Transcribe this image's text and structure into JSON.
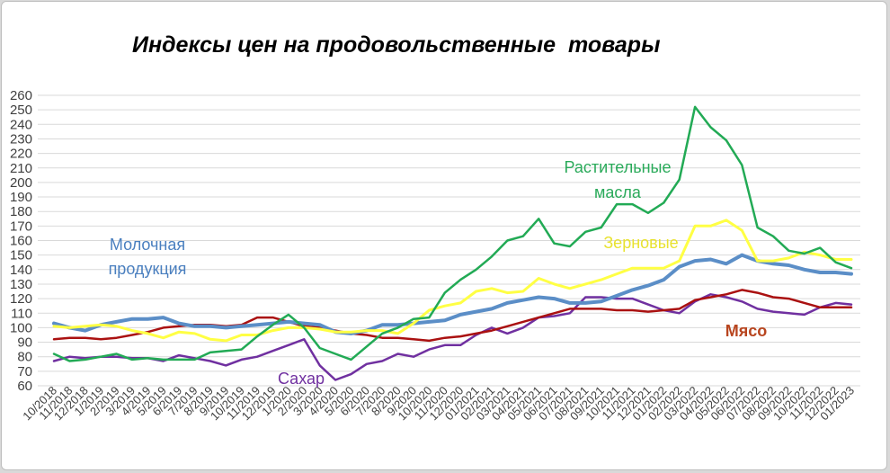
{
  "chart_data": {
    "type": "line",
    "title": "Индексы цен на продовольственные  товары",
    "xlabel": "",
    "ylabel": "",
    "ylim": [
      60,
      260
    ],
    "yticks": [
      60,
      70,
      80,
      90,
      100,
      110,
      120,
      130,
      140,
      150,
      160,
      170,
      180,
      190,
      200,
      210,
      220,
      230,
      240,
      250,
      260
    ],
    "grid": true,
    "legend": "none (inline labels)",
    "x": [
      "10/2018",
      "11/2018",
      "12/2018",
      "1/2019",
      "2/2019",
      "3/2019",
      "4/2019",
      "5/2019",
      "6/2019",
      "7/2019",
      "8/2019",
      "9/2019",
      "10/2019",
      "11/2019",
      "12/2019",
      "1/2020",
      "2/2020",
      "3/2020",
      "4/2020",
      "5/2020",
      "6/2020",
      "7/2020",
      "8/2020",
      "9/2020",
      "10/2020",
      "11/2020",
      "12/2020",
      "01/2021",
      "02/2021",
      "03/2021",
      "04/2021",
      "05/2021",
      "06/2021",
      "07/2021",
      "08/2021",
      "09/2021",
      "10/2021",
      "11/2021",
      "12/2021",
      "01/2022",
      "02/2022",
      "03/2022",
      "04/2022",
      "05/2022",
      "06/2022",
      "07/2022",
      "08/2022",
      "09/2022",
      "10/2022",
      "11/2022",
      "12/2022",
      "01/2023"
    ],
    "series": [
      {
        "name": "Молочная продукция",
        "color": "#5b8ec7",
        "values": [
          103,
          100,
          98,
          102,
          104,
          106,
          106,
          107,
          103,
          101,
          101,
          100,
          101,
          102,
          103,
          104,
          103,
          102,
          97,
          96,
          98,
          102,
          102,
          103,
          104,
          105,
          109,
          111,
          113,
          117,
          119,
          121,
          120,
          117,
          117,
          118,
          122,
          126,
          129,
          133,
          142,
          146,
          147,
          144,
          150,
          146,
          144,
          143,
          140,
          138,
          138,
          137
        ]
      },
      {
        "name": "Зерновые",
        "color": "#ffff44",
        "values": [
          101,
          100,
          101,
          102,
          101,
          98,
          96,
          93,
          97,
          96,
          92,
          91,
          95,
          95,
          98,
          100,
          100,
          99,
          97,
          97,
          98,
          98,
          96,
          103,
          112,
          115,
          117,
          125,
          127,
          124,
          125,
          134,
          130,
          127,
          130,
          133,
          137,
          141,
          141,
          141,
          146,
          170,
          170,
          174,
          167,
          146,
          146,
          148,
          152,
          150,
          147,
          147
        ]
      },
      {
        "name": "Растительные масла",
        "color": "#22aa55",
        "values": [
          82,
          77,
          78,
          80,
          82,
          78,
          79,
          78,
          78,
          78,
          83,
          84,
          85,
          94,
          102,
          109,
          100,
          86,
          82,
          78,
          87,
          96,
          100,
          106,
          107,
          124,
          133,
          140,
          149,
          160,
          163,
          175,
          158,
          156,
          166,
          169,
          185,
          185,
          179,
          186,
          202,
          252,
          238,
          229,
          212,
          169,
          163,
          153,
          151,
          155,
          145,
          141
        ]
      },
      {
        "name": "Мясо",
        "color": "#aa1111",
        "values": [
          92,
          93,
          93,
          92,
          93,
          95,
          97,
          100,
          101,
          102,
          102,
          101,
          102,
          107,
          107,
          104,
          101,
          100,
          98,
          96,
          95,
          93,
          93,
          92,
          91,
          93,
          94,
          96,
          98,
          101,
          104,
          107,
          110,
          113,
          113,
          113,
          112,
          112,
          111,
          112,
          113,
          119,
          121,
          123,
          126,
          124,
          121,
          120,
          117,
          114,
          114,
          114
        ]
      },
      {
        "name": "Сахар",
        "color": "#7030a0",
        "values": [
          77,
          80,
          79,
          80,
          80,
          79,
          79,
          77,
          81,
          79,
          77,
          74,
          78,
          80,
          84,
          88,
          92,
          74,
          64,
          68,
          75,
          77,
          82,
          80,
          85,
          88,
          88,
          95,
          100,
          96,
          100,
          107,
          108,
          110,
          121,
          121,
          120,
          120,
          116,
          112,
          110,
          118,
          123,
          121,
          118,
          113,
          111,
          110,
          109,
          114,
          117,
          116
        ]
      }
    ],
    "annotations": [
      {
        "text": "Молочная",
        "series": "Молочная продукция"
      },
      {
        "text": "продукция",
        "series": "Молочная продукция"
      },
      {
        "text": "Зерновые",
        "series": "Зерновые"
      },
      {
        "text": "Растительные",
        "series": "Растительные масла"
      },
      {
        "text": "масла",
        "series": "Растительные масла"
      },
      {
        "text": "Мясо",
        "series": "Мясо"
      },
      {
        "text": "Сахар",
        "series": "Сахар"
      }
    ]
  }
}
